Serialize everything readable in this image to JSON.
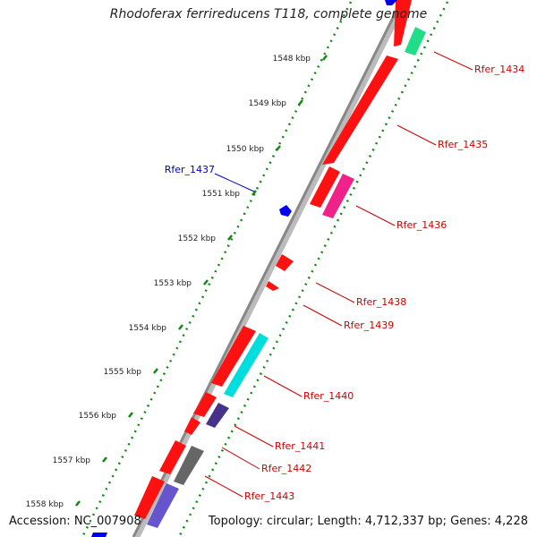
{
  "title": "Rhodoferax ferrireducens T118, complete genome",
  "accession": "Accession: NC_007908",
  "topology": "Topology: circular; Length: 4,712,337 bp; Genes: 4,228",
  "kbp_ticks": [
    "1548 kbp",
    "1549 kbp",
    "1550 kbp",
    "1551 kbp",
    "1552 kbp",
    "1553 kbp",
    "1554 kbp",
    "1555 kbp",
    "1556 kbp",
    "1557 kbp",
    "1558 kbp"
  ],
  "genes": [
    {
      "label": "Rfer_1434",
      "color": "#cc0000",
      "feature_color": "#22dd88"
    },
    {
      "label": "Rfer_1435",
      "color": "#cc0000",
      "feature_color": "#ff1111"
    },
    {
      "label": "Rfer_1436",
      "color": "#cc0000",
      "feature_color": "#ee2288"
    },
    {
      "label": "Rfer_1437",
      "color": "#0000cc",
      "feature_color": "#0000ee"
    },
    {
      "label": "Rfer_1438",
      "color": "#cc0000",
      "feature_color": "#ff1111"
    },
    {
      "label": "Rfer_1439",
      "color": "#cc0000",
      "feature_color": "#ff1111"
    },
    {
      "label": "Rfer_1440",
      "color": "#cc0000",
      "feature_color": "#00dddd"
    },
    {
      "label": "Rfer_1441",
      "color": "#cc0000",
      "feature_color": "#443388"
    },
    {
      "label": "Rfer_1442",
      "color": "#cc0000",
      "feature_color": "#666666"
    },
    {
      "label": "Rfer_1443",
      "color": "#cc0000",
      "feature_color": "#6655cc"
    }
  ],
  "colors": {
    "backbone": "#888888",
    "tick_dots": "#118811",
    "forward_strand": "#ff1111"
  }
}
